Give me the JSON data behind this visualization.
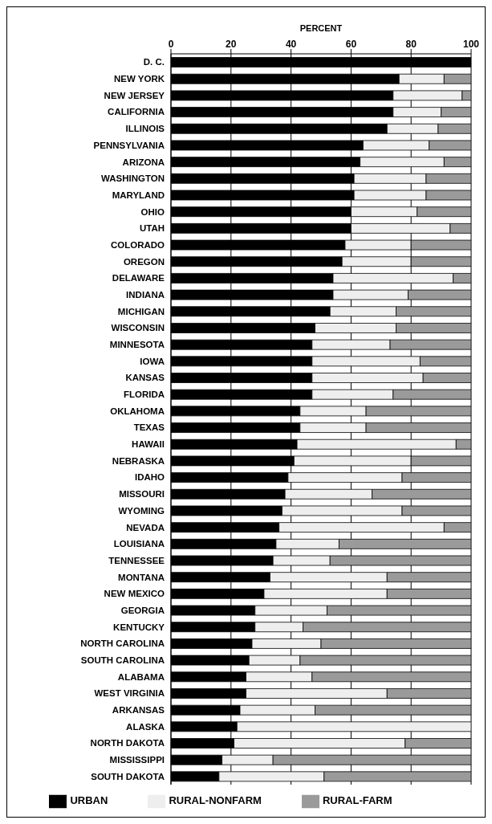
{
  "chart_data": {
    "type": "bar",
    "orientation": "horizontal",
    "stacked": true,
    "xlabel": "PERCENT",
    "categories": [
      "D. C.",
      "NEW YORK",
      "NEW JERSEY",
      "CALIFORNIA",
      "ILLINOIS",
      "PENNSYLVANIA",
      "ARIZONA",
      "WASHINGTON",
      "MARYLAND",
      "OHIO",
      "UTAH",
      "COLORADO",
      "OREGON",
      "DELAWARE",
      "INDIANA",
      "MICHIGAN",
      "WISCONSIN",
      "MINNESOTA",
      "IOWA",
      "KANSAS",
      "FLORIDA",
      "OKLAHOMA",
      "TEXAS",
      "HAWAII",
      "NEBRASKA",
      "IDAHO",
      "MISSOURI",
      "WYOMING",
      "NEVADA",
      "LOUISIANA",
      "TENNESSEE",
      "MONTANA",
      "NEW MEXICO",
      "GEORGIA",
      "KENTUCKY",
      "NORTH CAROLINA",
      "SOUTH CAROLINA",
      "ALABAMA",
      "WEST VIRGINIA",
      "ARKANSAS",
      "ALASKA",
      "NORTH DAKOTA",
      "MISSISSIPPI",
      "SOUTH DAKOTA"
    ],
    "series": [
      {
        "name": "URBAN",
        "color": "#000000",
        "values": [
          100,
          76,
          74,
          74,
          72,
          64,
          63,
          61,
          61,
          60,
          60,
          58,
          57,
          54,
          54,
          53,
          48,
          47,
          47,
          47,
          47,
          43,
          43,
          42,
          41,
          39,
          38,
          37,
          36,
          35,
          34,
          33,
          31,
          28,
          28,
          27,
          26,
          25,
          25,
          23,
          22,
          21,
          17,
          16
        ]
      },
      {
        "name": "RURAL-NONFARM",
        "color": "#eeeeee",
        "values": [
          0,
          15,
          23,
          16,
          17,
          22,
          28,
          24,
          24,
          22,
          33,
          22,
          23,
          40,
          25,
          22,
          27,
          26,
          36,
          37,
          27,
          22,
          22,
          53,
          39,
          38,
          29,
          40,
          55,
          21,
          19,
          39,
          41,
          24,
          16,
          23,
          17,
          22,
          47,
          25,
          78,
          57,
          17,
          35
        ]
      },
      {
        "name": "RURAL-FARM",
        "color": "#9a9a9a",
        "values": [
          0,
          9,
          3,
          10,
          11,
          14,
          9,
          15,
          15,
          18,
          7,
          20,
          20,
          6,
          21,
          25,
          25,
          27,
          17,
          16,
          26,
          35,
          35,
          5,
          20,
          23,
          33,
          23,
          9,
          44,
          47,
          28,
          28,
          48,
          56,
          50,
          57,
          53,
          28,
          52,
          0,
          22,
          66,
          49
        ]
      }
    ],
    "xlim": [
      0,
      100
    ],
    "xticks": [
      0,
      20,
      40,
      60,
      80,
      100
    ],
    "grid": "x",
    "legend": "bottom"
  }
}
